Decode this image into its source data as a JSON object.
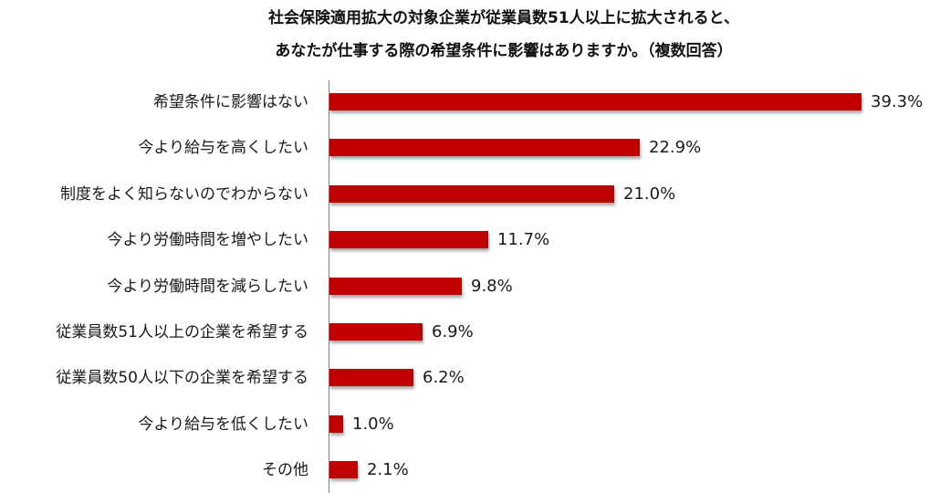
{
  "chart_data": {
    "type": "bar",
    "orientation": "horizontal",
    "title": "社会保険適用拡大の対象企業が従業員数51人以上に拡大されると、あなたが仕事する際の希望条件に影響はありますか。（複数回答）",
    "title_lines": [
      "社会保険適用拡大の対象企業が従業員数51人以上に拡大されると、",
      "あなたが仕事する際の希望条件に影響はありますか。（複数回答）"
    ],
    "categories": [
      "希望条件に影響はない",
      "今より給与を高くしたい",
      "制度をよく知らないのでわからない",
      "今より労働時間を増やしたい",
      "今より労働時間を減らしたい",
      "従業員数51人以上の企業を希望する",
      "従業員数50人以下の企業を希望する",
      "今より給与を低くしたい",
      "その他"
    ],
    "values": [
      39.3,
      22.9,
      21.0,
      11.7,
      9.8,
      6.9,
      6.2,
      1.0,
      2.1
    ],
    "value_labels": [
      "39.3%",
      "22.9%",
      "21.0%",
      "11.7%",
      "9.8%",
      "6.9%",
      "6.2%",
      "1.0%",
      "2.1%"
    ],
    "unit": "%",
    "xlabel": "",
    "ylabel": "",
    "grid": false,
    "legend": null,
    "bar_color": "#c00000"
  }
}
